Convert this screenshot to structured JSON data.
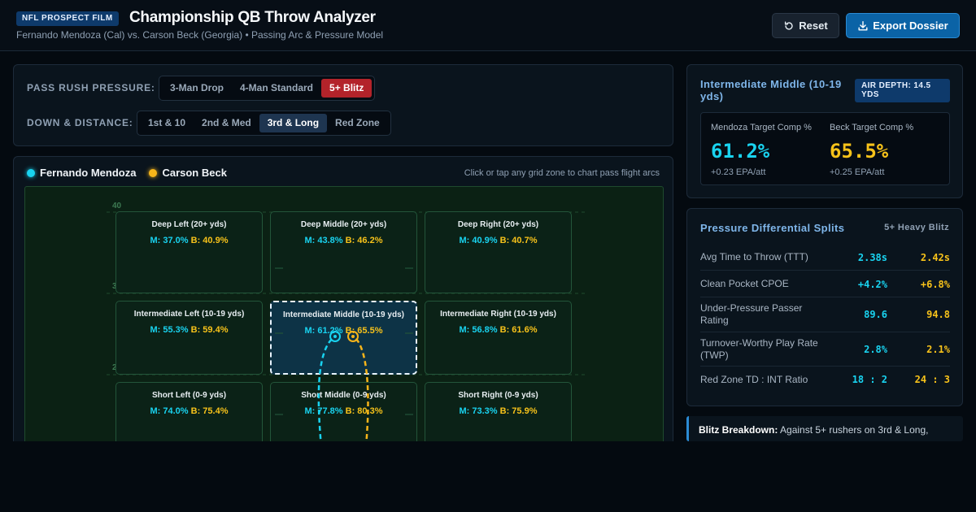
{
  "header": {
    "badge": "NFL PROSPECT FILM",
    "title": "Championship QB Throw Analyzer",
    "subtitle": "Fernando Mendoza (Cal) vs. Carson Beck (Georgia) • Passing Arc & Pressure Model",
    "reset_label": "Reset",
    "export_label": "Export Dossier"
  },
  "controls": {
    "pressure_label": "PASS RUSH PRESSURE:",
    "pressure_options": [
      "3-Man Drop",
      "4-Man Standard",
      "5+ Blitz"
    ],
    "pressure_selected": "5+ Blitz",
    "down_label": "DOWN & DISTANCE:",
    "down_options": [
      "1st & 10",
      "2nd & Med",
      "3rd & Long",
      "Red Zone"
    ],
    "down_selected": "3rd & Long"
  },
  "field": {
    "legend_m": "Fernando Mendoza",
    "legend_b": "Carson Beck",
    "hint": "Click or tap any grid zone to chart pass flight arcs",
    "yard_numbers": [
      "40",
      "30",
      "20"
    ],
    "zones": [
      {
        "name": "Deep Left (20+ yds)",
        "m": "M: 37.0%",
        "b": "B: 40.9%"
      },
      {
        "name": "Deep Middle (20+ yds)",
        "m": "M: 43.8%",
        "b": "B: 46.2%"
      },
      {
        "name": "Deep Right (20+ yds)",
        "m": "M: 40.9%",
        "b": "B: 40.7%"
      },
      {
        "name": "Intermediate Left (10-19 yds)",
        "m": "M: 55.3%",
        "b": "B: 59.4%"
      },
      {
        "name": "Intermediate Middle (10-19 yds)",
        "m": "M: 61.2%",
        "b": "B: 65.5%"
      },
      {
        "name": "Intermediate Right (10-19 yds)",
        "m": "M: 56.8%",
        "b": "B: 61.6%"
      },
      {
        "name": "Short Left (0-9 yds)",
        "m": "M: 74.0%",
        "b": "B: 75.4%"
      },
      {
        "name": "Short Middle (0-9 yds)",
        "m": "M: 77.8%",
        "b": "B: 80.3%"
      },
      {
        "name": "Short Right (0-9 yds)",
        "m": "M: 73.3%",
        "b": "B: 75.9%"
      }
    ],
    "selected_zone": "Intermediate Middle (10-19 yds)"
  },
  "detail": {
    "title": "Intermediate Middle (10-19 yds)",
    "depth_badge": "AIR DEPTH: 14.5 YDS",
    "m_label": "Mendoza Target Comp %",
    "m_value": "61.2%",
    "m_epa": "+0.23 EPA/att",
    "b_label": "Beck Target Comp %",
    "b_value": "65.5%",
    "b_epa": "+0.25 EPA/att"
  },
  "splits": {
    "title": "Pressure Differential Splits",
    "tag": "5+ Heavy Blitz",
    "rows": [
      {
        "label": "Avg Time to Throw (TTT)",
        "m": "2.38s",
        "b": "2.42s"
      },
      {
        "label": "Clean Pocket CPOE",
        "m": "+4.2%",
        "b": "+6.8%"
      },
      {
        "label": "Under-Pressure Passer Rating",
        "m": "89.6",
        "b": "94.8"
      },
      {
        "label": "Turnover-Worthy Play Rate (TWP)",
        "m": "2.8%",
        "b": "2.1%"
      },
      {
        "label": "Red Zone TD : INT Ratio",
        "m": "18 : 2",
        "b": "24 : 3"
      }
    ]
  },
  "note": {
    "lead": "Blitz Breakdown:",
    "text": "Against 5+ rushers on 3rd & Long,"
  },
  "colors": {
    "mendoza": "#19d3f0",
    "beck": "#f7b51a",
    "blitz": "#b3232a",
    "accent": "#0b63a6"
  }
}
